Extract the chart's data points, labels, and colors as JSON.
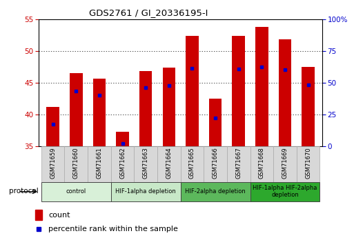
{
  "title": "GDS2761 / GI_20336195-I",
  "samples": [
    "GSM71659",
    "GSM71660",
    "GSM71661",
    "GSM71662",
    "GSM71663",
    "GSM71664",
    "GSM71665",
    "GSM71666",
    "GSM71667",
    "GSM71668",
    "GSM71669",
    "GSM71670"
  ],
  "bar_tops": [
    41.2,
    46.5,
    45.6,
    37.3,
    46.8,
    47.4,
    52.4,
    42.5,
    52.4,
    53.8,
    51.8,
    47.5
  ],
  "bar_base": 35,
  "blue_vals": [
    38.5,
    43.7,
    43.0,
    35.4,
    44.2,
    44.6,
    47.3,
    39.5,
    47.2,
    47.5,
    47.0,
    44.7
  ],
  "ylim_left": [
    35,
    55
  ],
  "ylim_right": [
    0,
    100
  ],
  "yticks_left": [
    35,
    40,
    45,
    50,
    55
  ],
  "ytick_labels_right": [
    "0",
    "25",
    "50",
    "75",
    "100%"
  ],
  "yticks_right": [
    0,
    25,
    50,
    75,
    100
  ],
  "bar_color": "#cc0000",
  "blue_color": "#0000cc",
  "bar_width": 0.55,
  "groups": [
    {
      "label": "control",
      "start": 0,
      "end": 2,
      "color": "#d8f0d8"
    },
    {
      "label": "HIF-1alpha depletion",
      "start": 3,
      "end": 5,
      "color": "#c8e8c8"
    },
    {
      "label": "HIF-2alpha depletion",
      "start": 6,
      "end": 8,
      "color": "#5cb85c"
    },
    {
      "label": "HIF-1alpha HIF-2alpha\ndepletion",
      "start": 9,
      "end": 11,
      "color": "#2da82d"
    }
  ],
  "legend_count_label": "count",
  "legend_percentile_label": "percentile rank within the sample",
  "protocol_label": "protocol",
  "background_color": "#ffffff",
  "plot_bg": "#ffffff",
  "tick_label_color_left": "#cc0000",
  "tick_label_color_right": "#0000cc",
  "sample_cell_color": "#d8d8d8",
  "sample_cell_edge": "#aaaaaa"
}
